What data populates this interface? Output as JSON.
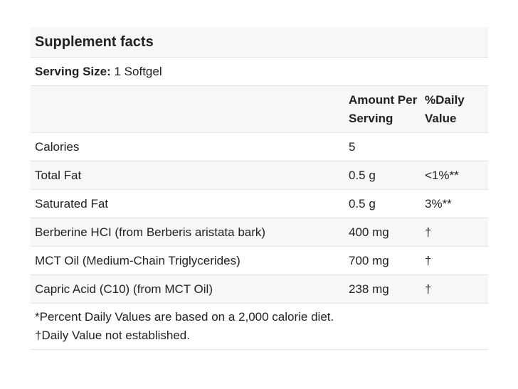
{
  "title": "Supplement facts",
  "serving_size": {
    "label": "Serving Size:",
    "value": "1 Softgel"
  },
  "table": {
    "header": {
      "amount": "Amount Per Serving",
      "daily_value": "%Daily Value"
    },
    "rows": [
      [
        "Calories",
        "5"
      ],
      [
        "Total Fat",
        "0.5 g",
        "<1%**"
      ],
      [
        "Saturated Fat",
        "0.5 g",
        "3%**"
      ],
      [
        "Berberine HCI (from Berberis aristata bark)",
        "400 mg",
        "†"
      ],
      [
        "MCT Oil (Medium-Chain Triglycerides)",
        "700 mg",
        "†"
      ],
      [
        "Capric Acid (C10) (from MCT Oil)",
        "238 mg",
        "†"
      ]
    ]
  },
  "footnotes": [
    "*Percent Daily Values are based on a 2,000 calorie diet.",
    "†Daily Value not established."
  ]
}
